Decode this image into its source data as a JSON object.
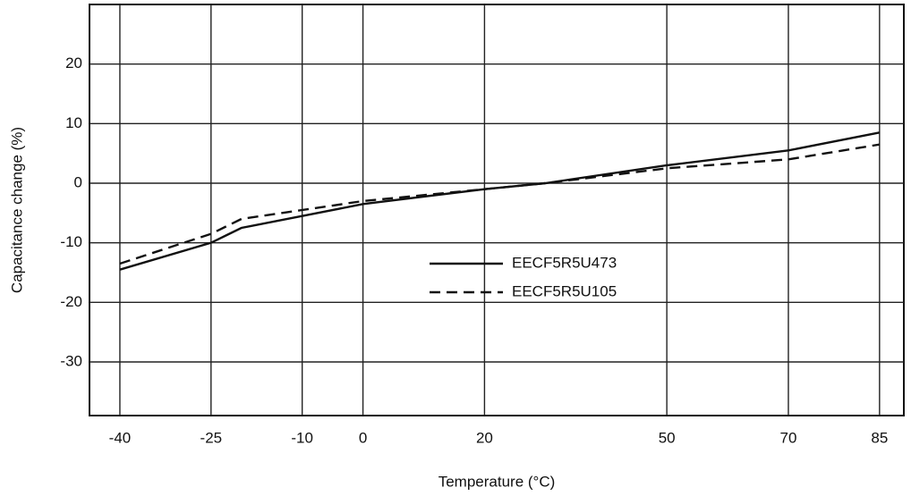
{
  "chart_data": {
    "type": "line",
    "x_label": "Temperature (°C)",
    "y_label": "Capacitance change (%)",
    "x": [
      -40,
      -25,
      -20,
      -10,
      0,
      20,
      30,
      50,
      70,
      85
    ],
    "series": [
      {
        "name": "EECF5R5U473",
        "color": "#111111",
        "dash": false,
        "values": [
          -14.5,
          -10,
          -7.5,
          -5.5,
          -3.5,
          -1,
          0,
          3,
          5.5,
          8.5
        ]
      },
      {
        "name": "EECF5R5U105",
        "color": "#111111",
        "dash": true,
        "values": [
          -13.5,
          -8.5,
          -6,
          -4.5,
          -3,
          -1,
          0,
          2.5,
          4,
          6.5
        ]
      }
    ],
    "xlim": [
      -45,
      89
    ],
    "xticks": [
      -40,
      -25,
      -10,
      0,
      20,
      50,
      70,
      85
    ],
    "ylim": [
      -39,
      30
    ],
    "yticks": [
      -30,
      -20,
      -10,
      0,
      10,
      20
    ],
    "grid": true,
    "legend": "center"
  }
}
